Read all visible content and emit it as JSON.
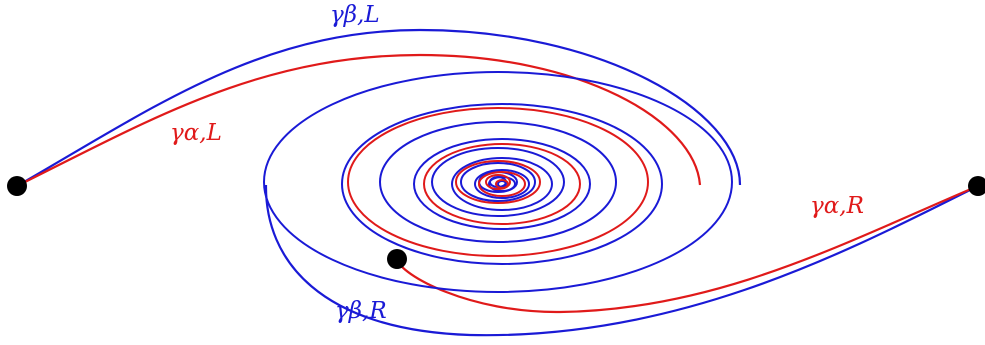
{
  "colors": {
    "beta_curves": "#1a1ad6",
    "alpha_curves": "#e01a1a",
    "endpoints": "#000000",
    "background": "#ffffff"
  },
  "labels": {
    "beta_L": "γβ,L",
    "alpha_L": "γα,L",
    "alpha_R": "γα,R",
    "beta_R": "γβ,R"
  },
  "curves": [
    {
      "name": "gamma-beta-L"
    },
    {
      "name": "gamma-alpha-L"
    },
    {
      "name": "gamma-beta-R"
    },
    {
      "name": "gamma-alpha-R"
    }
  ]
}
